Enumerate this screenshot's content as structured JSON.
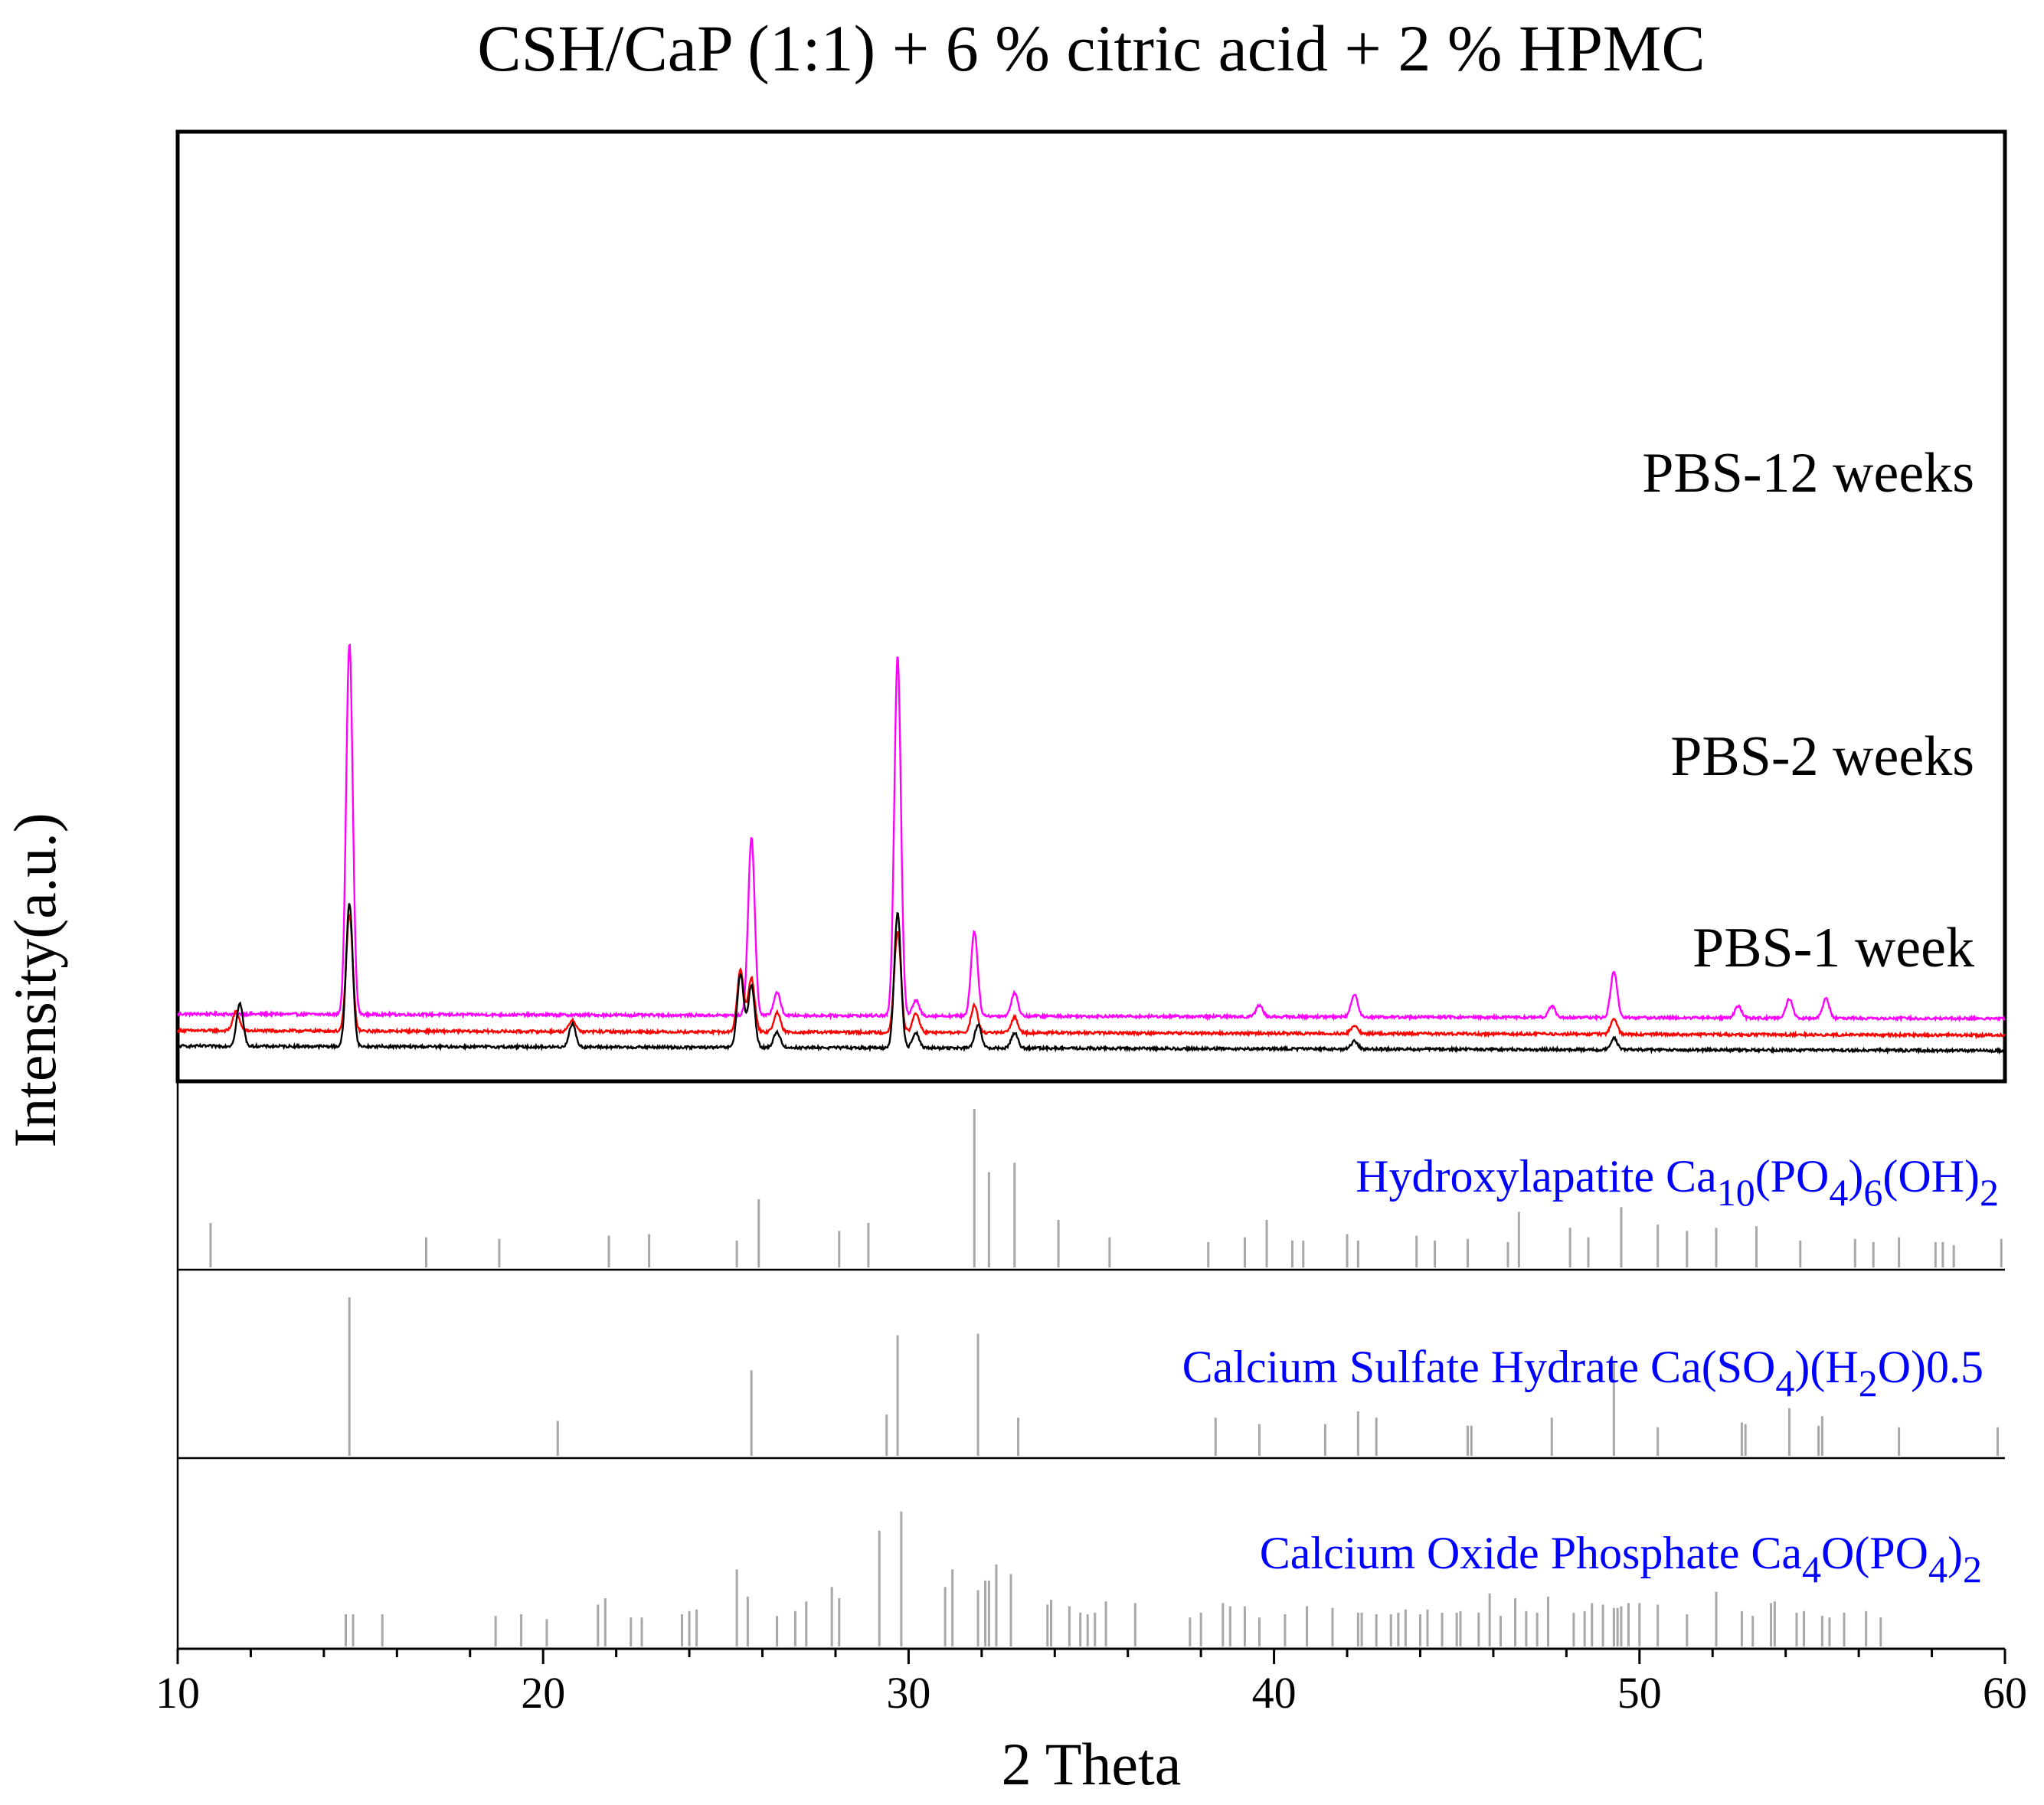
{
  "chart_data": {
    "type": "line",
    "title": "CSH/CaP (1:1) + 6 % citric acid + 2 % HPMC",
    "xlabel": "2 Theta",
    "ylabel": "Intensity(a.u.)",
    "xlim": [
      10,
      60
    ],
    "xticks": [
      "10",
      "20",
      "30",
      "40",
      "50",
      "60"
    ],
    "series": [
      {
        "name": "PBS-12 weeks",
        "color": "#ff00ff",
        "base": 0.83,
        "peaks": [
          [
            14.7,
            9.6
          ],
          [
            25.7,
            4.6
          ],
          [
            26.4,
            0.6
          ],
          [
            29.7,
            9.3
          ],
          [
            30.2,
            0.4
          ],
          [
            31.8,
            2.2
          ],
          [
            32.9,
            0.6
          ],
          [
            39.6,
            0.3
          ],
          [
            42.2,
            0.6
          ],
          [
            47.6,
            0.3
          ],
          [
            49.3,
            1.2
          ],
          [
            52.7,
            0.3
          ],
          [
            54.1,
            0.5
          ],
          [
            55.1,
            0.5
          ]
        ]
      },
      {
        "name": "PBS-2 weeks",
        "color": "#ff0000",
        "base": 0.4,
        "peaks": [
          [
            11.6,
            0.5
          ],
          [
            14.7,
            3.0
          ],
          [
            20.8,
            0.3
          ],
          [
            25.4,
            1.6
          ],
          [
            25.7,
            1.4
          ],
          [
            26.4,
            0.5
          ],
          [
            29.7,
            2.6
          ],
          [
            30.2,
            0.5
          ],
          [
            31.8,
            0.7
          ],
          [
            32.9,
            0.4
          ],
          [
            42.2,
            0.2
          ],
          [
            49.3,
            0.4
          ]
        ]
      },
      {
        "name": "PBS-1 week",
        "color": "#000000",
        "base": 0.0,
        "peaks": [
          [
            11.7,
            1.1
          ],
          [
            14.7,
            3.7
          ],
          [
            20.8,
            0.6
          ],
          [
            25.4,
            1.9
          ],
          [
            25.7,
            1.6
          ],
          [
            26.4,
            0.4
          ],
          [
            29.7,
            3.5
          ],
          [
            30.2,
            0.4
          ],
          [
            31.9,
            0.6
          ],
          [
            32.9,
            0.4
          ],
          [
            42.2,
            0.2
          ],
          [
            49.3,
            0.3
          ]
        ]
      }
    ],
    "reference_patterns": [
      {
        "name": "Hydroxylapatite",
        "label_text": "Hydroxylapatite Ca",
        "formula": [
          [
            "Ca",
            ""
          ],
          [
            "10",
            "sub"
          ],
          [
            "(PO",
            ""
          ],
          [
            "4",
            "sub"
          ],
          [
            ")",
            ""
          ],
          [
            "6",
            "sub"
          ],
          [
            "(OH)",
            ""
          ],
          [
            "2",
            "sub"
          ]
        ],
        "lines": [
          [
            10.9,
            0.28
          ],
          [
            16.8,
            0.19
          ],
          [
            18.8,
            0.18
          ],
          [
            21.8,
            0.2
          ],
          [
            22.9,
            0.21
          ],
          [
            25.3,
            0.17
          ],
          [
            25.9,
            0.43
          ],
          [
            28.1,
            0.23
          ],
          [
            28.9,
            0.28
          ],
          [
            31.8,
            1.0
          ],
          [
            32.2,
            0.6
          ],
          [
            32.9,
            0.66
          ],
          [
            34.1,
            0.3
          ],
          [
            35.5,
            0.19
          ],
          [
            38.2,
            0.16
          ],
          [
            39.2,
            0.19
          ],
          [
            39.8,
            0.3
          ],
          [
            40.5,
            0.17
          ],
          [
            40.8,
            0.17
          ],
          [
            42.0,
            0.21
          ],
          [
            42.3,
            0.17
          ],
          [
            43.9,
            0.2
          ],
          [
            44.4,
            0.17
          ],
          [
            45.3,
            0.18
          ],
          [
            46.4,
            0.16
          ],
          [
            46.7,
            0.35
          ],
          [
            48.1,
            0.25
          ],
          [
            48.6,
            0.19
          ],
          [
            49.5,
            0.38
          ],
          [
            50.5,
            0.27
          ],
          [
            51.3,
            0.23
          ],
          [
            52.1,
            0.25
          ],
          [
            53.2,
            0.26
          ],
          [
            54.4,
            0.17
          ],
          [
            55.9,
            0.18
          ],
          [
            56.4,
            0.16
          ],
          [
            57.1,
            0.19
          ],
          [
            58.1,
            0.16
          ],
          [
            58.3,
            0.16
          ],
          [
            58.6,
            0.14
          ],
          [
            59.9,
            0.18
          ]
        ]
      },
      {
        "name": "Calcium Sulfate Hydrate",
        "label_text": "Calcium Sulfate Hydrate Ca",
        "formula": [
          [
            "Ca",
            ""
          ],
          [
            "(SO",
            ""
          ],
          [
            "4",
            "sub"
          ],
          [
            ")(H",
            ""
          ],
          [
            "2",
            "sub"
          ],
          [
            "O)0.5",
            ""
          ]
        ],
        "lines": [
          [
            14.7,
            1.0
          ],
          [
            20.4,
            0.22
          ],
          [
            25.7,
            0.54
          ],
          [
            29.4,
            0.26
          ],
          [
            29.7,
            0.76
          ],
          [
            31.9,
            0.77
          ],
          [
            33.0,
            0.24
          ],
          [
            38.4,
            0.24
          ],
          [
            39.6,
            0.2
          ],
          [
            41.4,
            0.2
          ],
          [
            42.3,
            0.28
          ],
          [
            42.8,
            0.24
          ],
          [
            45.3,
            0.19
          ],
          [
            45.4,
            0.19
          ],
          [
            47.6,
            0.24
          ],
          [
            49.3,
            0.6
          ],
          [
            50.5,
            0.18
          ],
          [
            52.8,
            0.21
          ],
          [
            52.9,
            0.2
          ],
          [
            54.1,
            0.3
          ],
          [
            54.9,
            0.19
          ],
          [
            55.0,
            0.25
          ],
          [
            57.1,
            0.18
          ],
          [
            59.8,
            0.18
          ]
        ]
      },
      {
        "name": "Calcium Oxide Phosphate",
        "label_text": "Calcium Oxide Phosphate Ca",
        "formula": [
          [
            "Ca",
            ""
          ],
          [
            "4",
            "sub"
          ],
          [
            "O(PO",
            ""
          ],
          [
            "4",
            "sub"
          ],
          [
            ")",
            ""
          ],
          [
            "2",
            "sub"
          ]
        ],
        "lines": [
          [
            14.6,
            0.2
          ],
          [
            14.8,
            0.2
          ],
          [
            15.6,
            0.2
          ],
          [
            18.7,
            0.19
          ],
          [
            19.4,
            0.2
          ],
          [
            20.1,
            0.17
          ],
          [
            21.5,
            0.26
          ],
          [
            21.7,
            0.3
          ],
          [
            22.4,
            0.18
          ],
          [
            22.7,
            0.18
          ],
          [
            23.8,
            0.2
          ],
          [
            24.0,
            0.22
          ],
          [
            24.2,
            0.23
          ],
          [
            25.3,
            0.48
          ],
          [
            25.6,
            0.31
          ],
          [
            26.4,
            0.19
          ],
          [
            26.9,
            0.22
          ],
          [
            27.2,
            0.28
          ],
          [
            27.9,
            0.37
          ],
          [
            28.1,
            0.3
          ],
          [
            29.2,
            0.72
          ],
          [
            29.8,
            0.84
          ],
          [
            31.0,
            0.37
          ],
          [
            31.2,
            0.48
          ],
          [
            31.9,
            0.35
          ],
          [
            32.1,
            0.41
          ],
          [
            32.2,
            0.41
          ],
          [
            32.4,
            0.51
          ],
          [
            32.8,
            0.45
          ],
          [
            33.8,
            0.26
          ],
          [
            33.9,
            0.29
          ],
          [
            34.4,
            0.25
          ],
          [
            34.7,
            0.21
          ],
          [
            34.9,
            0.2
          ],
          [
            35.1,
            0.21
          ],
          [
            35.4,
            0.28
          ],
          [
            36.2,
            0.27
          ],
          [
            37.7,
            0.18
          ],
          [
            38.0,
            0.21
          ],
          [
            38.6,
            0.27
          ],
          [
            38.8,
            0.25
          ],
          [
            39.2,
            0.25
          ],
          [
            39.6,
            0.18
          ],
          [
            40.3,
            0.2
          ],
          [
            40.9,
            0.25
          ],
          [
            41.6,
            0.24
          ],
          [
            42.3,
            0.21
          ],
          [
            42.4,
            0.21
          ],
          [
            42.8,
            0.2
          ],
          [
            43.2,
            0.2
          ],
          [
            43.4,
            0.21
          ],
          [
            43.6,
            0.23
          ],
          [
            44.0,
            0.2
          ],
          [
            44.2,
            0.23
          ],
          [
            44.6,
            0.21
          ],
          [
            45.0,
            0.21
          ],
          [
            45.1,
            0.22
          ],
          [
            45.6,
            0.21
          ],
          [
            45.9,
            0.33
          ],
          [
            46.2,
            0.19
          ],
          [
            46.6,
            0.3
          ],
          [
            46.9,
            0.22
          ],
          [
            47.2,
            0.21
          ],
          [
            47.5,
            0.31
          ],
          [
            48.2,
            0.21
          ],
          [
            48.5,
            0.22
          ],
          [
            48.7,
            0.27
          ],
          [
            49.0,
            0.26
          ],
          [
            49.3,
            0.24
          ],
          [
            49.4,
            0.24
          ],
          [
            49.5,
            0.25
          ],
          [
            49.7,
            0.27
          ],
          [
            50.0,
            0.27
          ],
          [
            50.5,
            0.26
          ],
          [
            51.3,
            0.2
          ],
          [
            52.1,
            0.34
          ],
          [
            52.8,
            0.22
          ],
          [
            53.1,
            0.19
          ],
          [
            53.6,
            0.27
          ],
          [
            53.7,
            0.28
          ],
          [
            54.3,
            0.21
          ],
          [
            54.5,
            0.22
          ],
          [
            55.0,
            0.19
          ],
          [
            55.2,
            0.18
          ],
          [
            55.6,
            0.21
          ],
          [
            56.2,
            0.22
          ],
          [
            56.6,
            0.18
          ]
        ]
      }
    ],
    "grid": false,
    "legend": "inline labels"
  },
  "colors": {
    "frame": "#000000",
    "reference_line": "#a8a8a8",
    "reference_label": "#0000ff"
  }
}
